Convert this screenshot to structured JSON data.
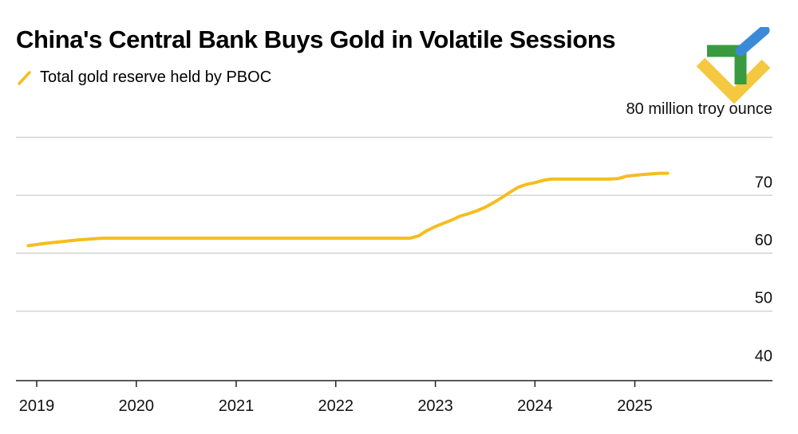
{
  "title": "China's Central Bank Buys Gold in Volatile Sessions",
  "colors": {
    "line": "#f5bd1f",
    "grid": "#d4d4d4",
    "axis": "#222222",
    "logo_green": "#3a9a3f",
    "logo_blue": "#3b8ad8",
    "logo_yellow": "#f5c842"
  },
  "logo": {
    "icon": "brand-logo-icon"
  },
  "chart_data": {
    "type": "line",
    "title": "China's Central Bank Buys Gold in Volatile Sessions",
    "unit_label": "80 million troy ounce",
    "xlabel": "",
    "ylabel": "",
    "ylim": [
      38,
      82
    ],
    "xlim": [
      "2019-01-01",
      "2025-12-31"
    ],
    "y_ticks": [
      40,
      50,
      60,
      70
    ],
    "x_ticks": [
      "2019",
      "2020",
      "2021",
      "2022",
      "2023",
      "2024",
      "2025"
    ],
    "grid": true,
    "legend_position": "top-left",
    "series": [
      {
        "name": "Total gold reserve held by PBOC",
        "points": [
          [
            "2018-12",
            61.3
          ],
          [
            "2019-02",
            61.7
          ],
          [
            "2019-04",
            62.0
          ],
          [
            "2019-06",
            62.3
          ],
          [
            "2019-09",
            62.6
          ],
          [
            "2019-12",
            62.6
          ],
          [
            "2020-06",
            62.6
          ],
          [
            "2020-12",
            62.6
          ],
          [
            "2021-06",
            62.6
          ],
          [
            "2021-12",
            62.6
          ],
          [
            "2022-06",
            62.6
          ],
          [
            "2022-10",
            62.6
          ],
          [
            "2022-11",
            63.0
          ],
          [
            "2022-12",
            63.9
          ],
          [
            "2023-01",
            64.6
          ],
          [
            "2023-02",
            65.2
          ],
          [
            "2023-03",
            65.7
          ],
          [
            "2023-04",
            66.4
          ],
          [
            "2023-05",
            66.8
          ],
          [
            "2023-06",
            67.3
          ],
          [
            "2023-07",
            67.9
          ],
          [
            "2023-08",
            68.7
          ],
          [
            "2023-09",
            69.6
          ],
          [
            "2023-10",
            70.5
          ],
          [
            "2023-11",
            71.4
          ],
          [
            "2023-12",
            71.9
          ],
          [
            "2024-01",
            72.2
          ],
          [
            "2024-02",
            72.6
          ],
          [
            "2024-03",
            72.8
          ],
          [
            "2024-04",
            72.8
          ],
          [
            "2024-06",
            72.8
          ],
          [
            "2024-08",
            72.8
          ],
          [
            "2024-10",
            72.8
          ],
          [
            "2024-11",
            72.9
          ],
          [
            "2024-12",
            73.3
          ],
          [
            "2025-02",
            73.6
          ],
          [
            "2025-04",
            73.8
          ],
          [
            "2025-05",
            73.8
          ]
        ]
      }
    ]
  }
}
